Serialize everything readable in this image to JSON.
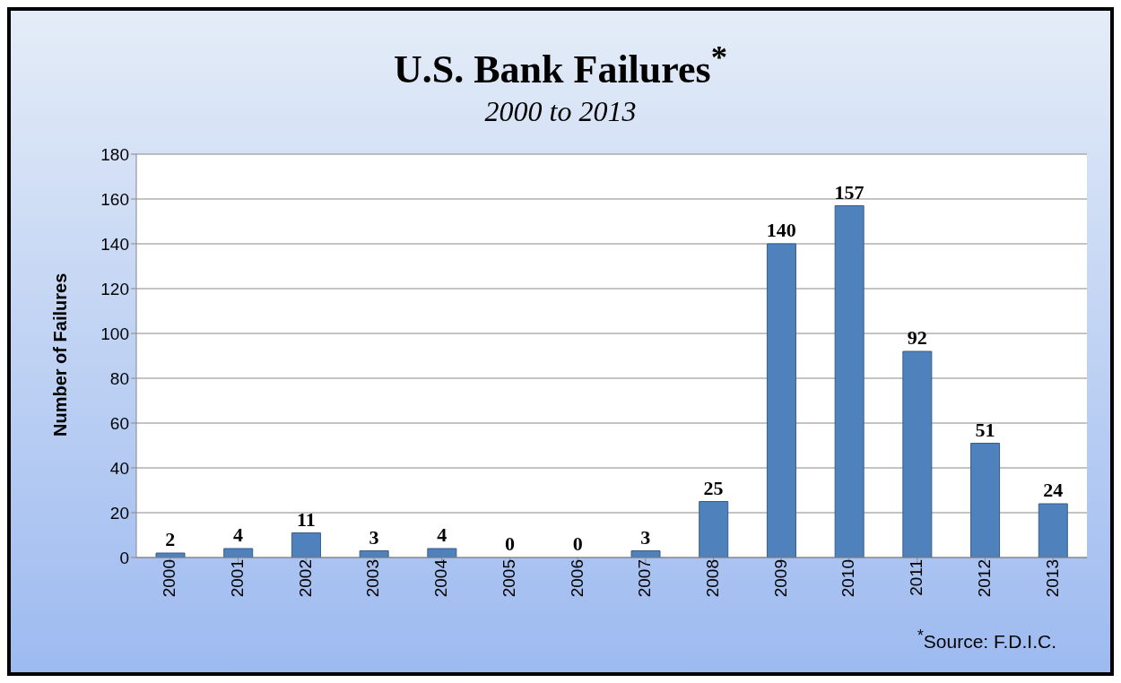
{
  "chart_data": {
    "type": "bar",
    "title": "U.S. Bank Failures$^{*}$",
    "subtitle": "2000 to 2013",
    "ylabel": "Number of Failures",
    "categories": [
      "2000",
      "2001",
      "2002",
      "2003",
      "2004",
      "2005",
      "2006",
      "2007",
      "2008",
      "2009",
      "2010",
      "2011",
      "2012",
      "2013"
    ],
    "values": [
      2,
      4,
      11,
      3,
      4,
      0,
      0,
      3,
      25,
      140,
      157,
      92,
      51,
      24
    ],
    "color": "#4f81bd",
    "ylim": [
      0,
      180
    ],
    "yticks": [
      0,
      20,
      40,
      60,
      80,
      100,
      120,
      140,
      160,
      180
    ],
    "grid": "y",
    "data_labels": true,
    "legend": false,
    "annotations": [
      "$^{*}$Source: F.D.I.C."
    ]
  }
}
